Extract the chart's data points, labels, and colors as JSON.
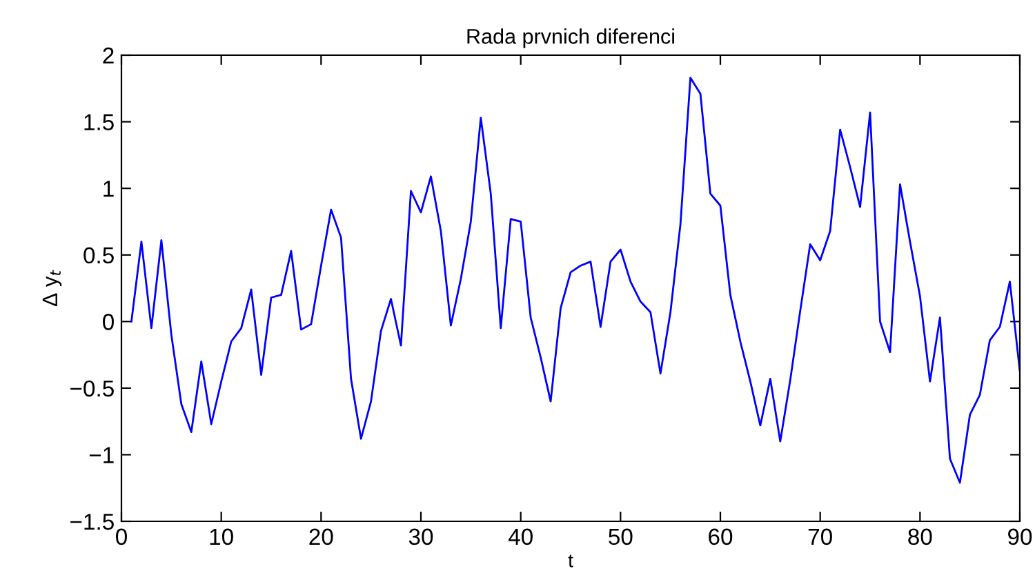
{
  "chart_data": {
    "type": "line",
    "title": "Rada prvnich diferenci",
    "xlabel": "t",
    "ylabel": "Δ y$_{t}$",
    "x": [
      1,
      2,
      3,
      4,
      5,
      6,
      7,
      8,
      9,
      10,
      11,
      12,
      13,
      14,
      15,
      16,
      17,
      18,
      19,
      20,
      21,
      22,
      23,
      24,
      25,
      26,
      27,
      28,
      29,
      30,
      31,
      32,
      33,
      34,
      35,
      36,
      37,
      38,
      39,
      40,
      41,
      42,
      43,
      44,
      45,
      46,
      47,
      48,
      49,
      50,
      51,
      52,
      53,
      54,
      55,
      56,
      57,
      58,
      59,
      60,
      61,
      62,
      63,
      64,
      65,
      66,
      67,
      68,
      69,
      70,
      71,
      72,
      73,
      74,
      75,
      76,
      77,
      78,
      79,
      80,
      81,
      82,
      83,
      84,
      85,
      86,
      87,
      88,
      89,
      90
    ],
    "series": [
      {
        "color": "#0000ff",
        "values": [
          0,
          0.6,
          -0.05,
          0.61,
          -0.1,
          -0.62,
          -0.83,
          -0.3,
          -0.77,
          -0.45,
          -0.15,
          -0.05,
          0.24,
          -0.4,
          0.18,
          0.2,
          0.53,
          -0.06,
          -0.02,
          0.42,
          0.84,
          0.63,
          -0.43,
          -0.88,
          -0.6,
          -0.07,
          0.17,
          -0.18,
          0.98,
          0.82,
          1.09,
          0.68,
          -0.03,
          0.32,
          0.75,
          1.53,
          0.96,
          -0.05,
          0.77,
          0.75,
          0.03,
          -0.27,
          -0.6,
          0.1,
          0.37,
          0.42,
          0.45,
          -0.04,
          0.45,
          0.54,
          0.3,
          0.15,
          0.07,
          -0.39,
          0.07,
          0.73,
          1.83,
          1.71,
          0.96,
          0.87,
          0.2,
          -0.15,
          -0.45,
          -0.78,
          -0.43,
          -0.9,
          -0.44,
          0.08,
          0.58,
          0.46,
          0.68,
          1.44,
          1.16,
          0.86,
          1.57,
          0,
          -0.23,
          1.03,
          0.6,
          0.19,
          -0.45,
          0.03,
          -1.03,
          -1.21,
          -0.7,
          -0.55,
          -0.14,
          -0.04,
          0.3,
          -0.37
        ]
      }
    ],
    "xlim": [
      0,
      90
    ],
    "xticks": [
      0,
      10,
      20,
      30,
      40,
      50,
      60,
      70,
      80,
      90
    ],
    "ylim": [
      -1.5,
      2
    ],
    "yticks": [
      -1.5,
      -1,
      -0.5,
      0,
      0.5,
      1,
      1.5,
      2
    ],
    "grid": false,
    "legend": false,
    "marker": "none",
    "line_style": "solid"
  }
}
